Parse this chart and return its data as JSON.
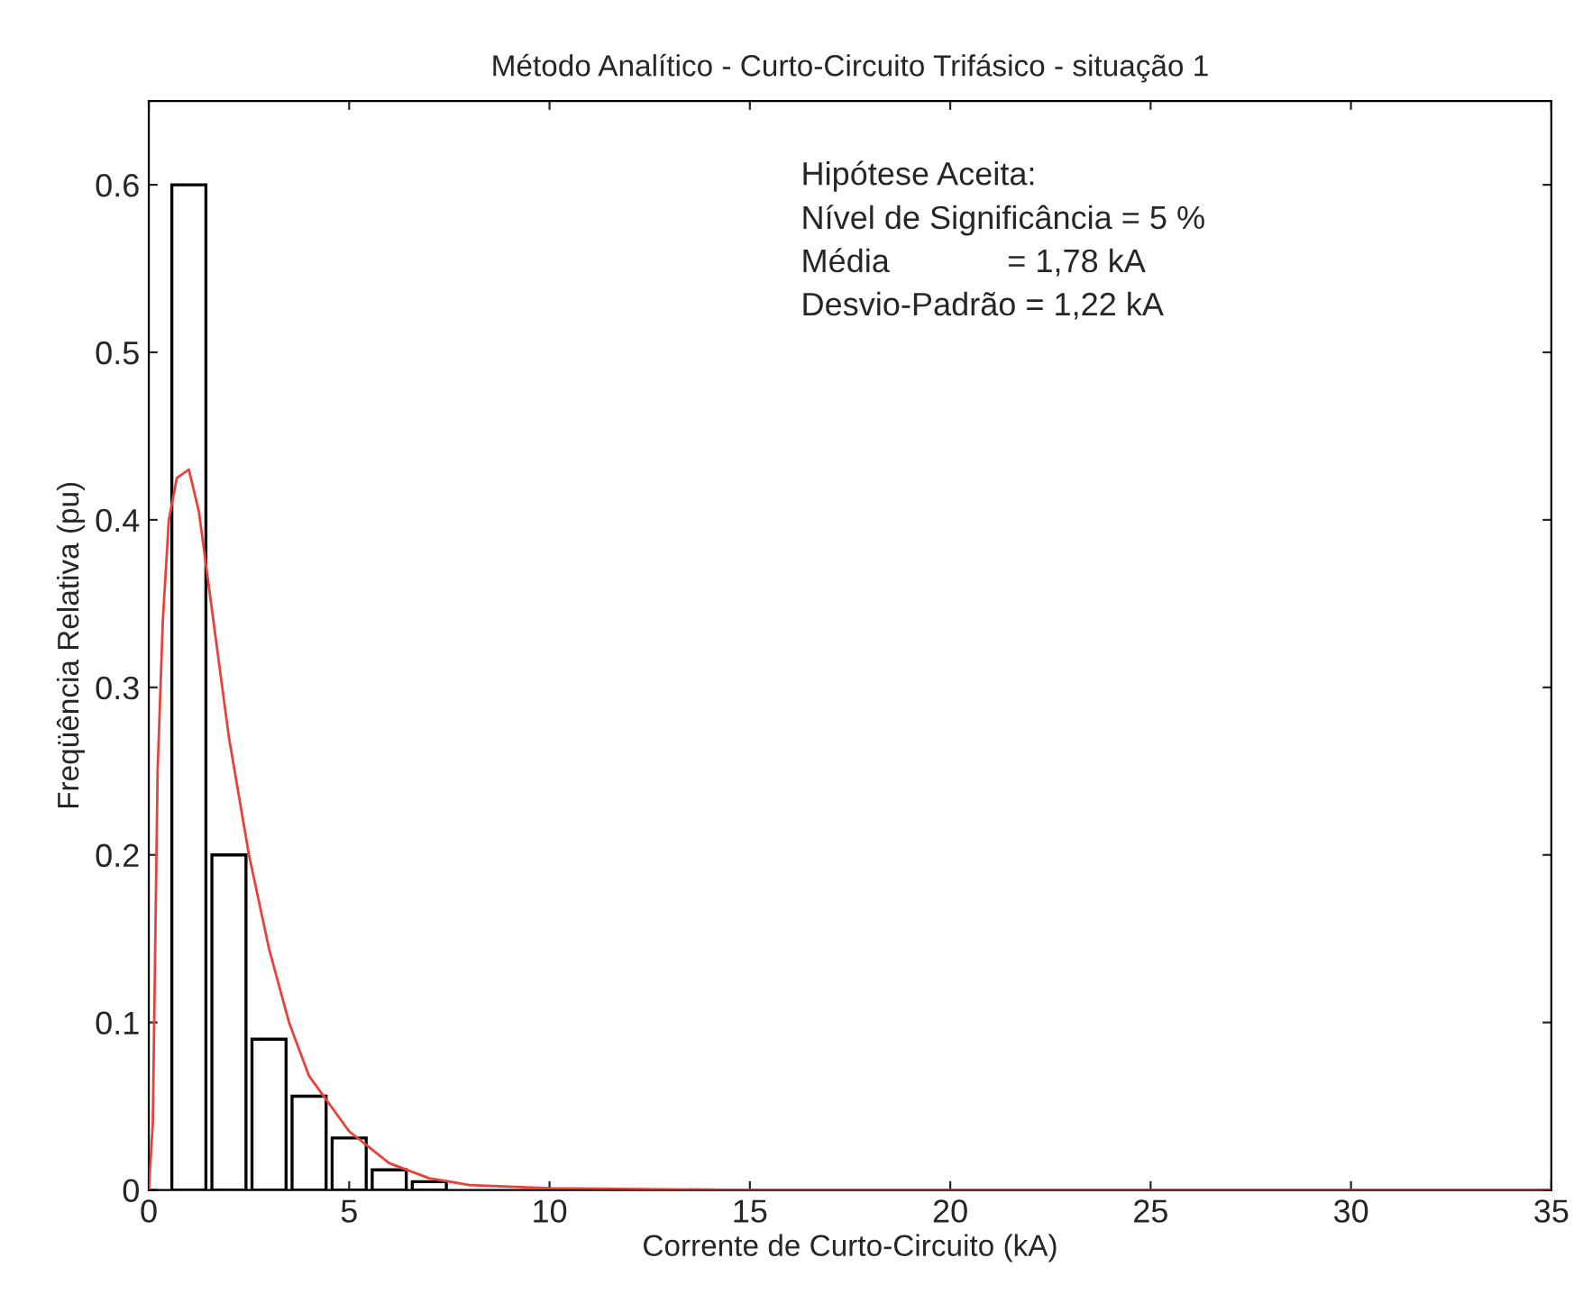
{
  "chart_data": {
    "type": "bar",
    "title": "Método Analítico - Curto-Circuito Trifásico - situação 1",
    "xlabel": "Corrente de Curto-Circuito (kA)",
    "ylabel": "Freqüência Relativa (pu)",
    "annotations": [
      "Hipótese Aceita:",
      "Nível de Significância = 5 %",
      "Média             = 1,78 kA",
      "Desvio-Padrão = 1,22 kA"
    ],
    "series": [
      {
        "color": "#000000",
        "x": [
          1,
          2,
          3,
          4,
          5,
          6,
          7
        ],
        "values": [
          0.6,
          0.2,
          0.09,
          0.056,
          0.031,
          0.012,
          0.005
        ]
      },
      {
        "type": "line",
        "color": "#e8403a",
        "x": [
          0,
          0.1,
          0.22,
          0.35,
          0.5,
          0.7,
          1.0,
          1.25,
          1.5,
          2.0,
          2.5,
          3.0,
          3.5,
          4.0,
          5.0,
          6.0,
          7.0,
          8.0,
          10.0,
          15.0,
          35.0
        ],
        "values": [
          0,
          0.04,
          0.25,
          0.34,
          0.4,
          0.425,
          0.43,
          0.405,
          0.36,
          0.27,
          0.2,
          0.144,
          0.1,
          0.068,
          0.035,
          0.016,
          0.007,
          0.003,
          0.001,
          0,
          0
        ]
      }
    ],
    "xlim": [
      0,
      35
    ],
    "xticks": [
      0,
      5,
      10,
      15,
      20,
      25,
      30,
      35
    ],
    "ylim": [
      0,
      0.65
    ],
    "yticks": [
      0,
      0.1,
      0.2,
      0.3,
      0.4,
      0.5,
      0.6
    ],
    "grid": false,
    "legend": false
  }
}
